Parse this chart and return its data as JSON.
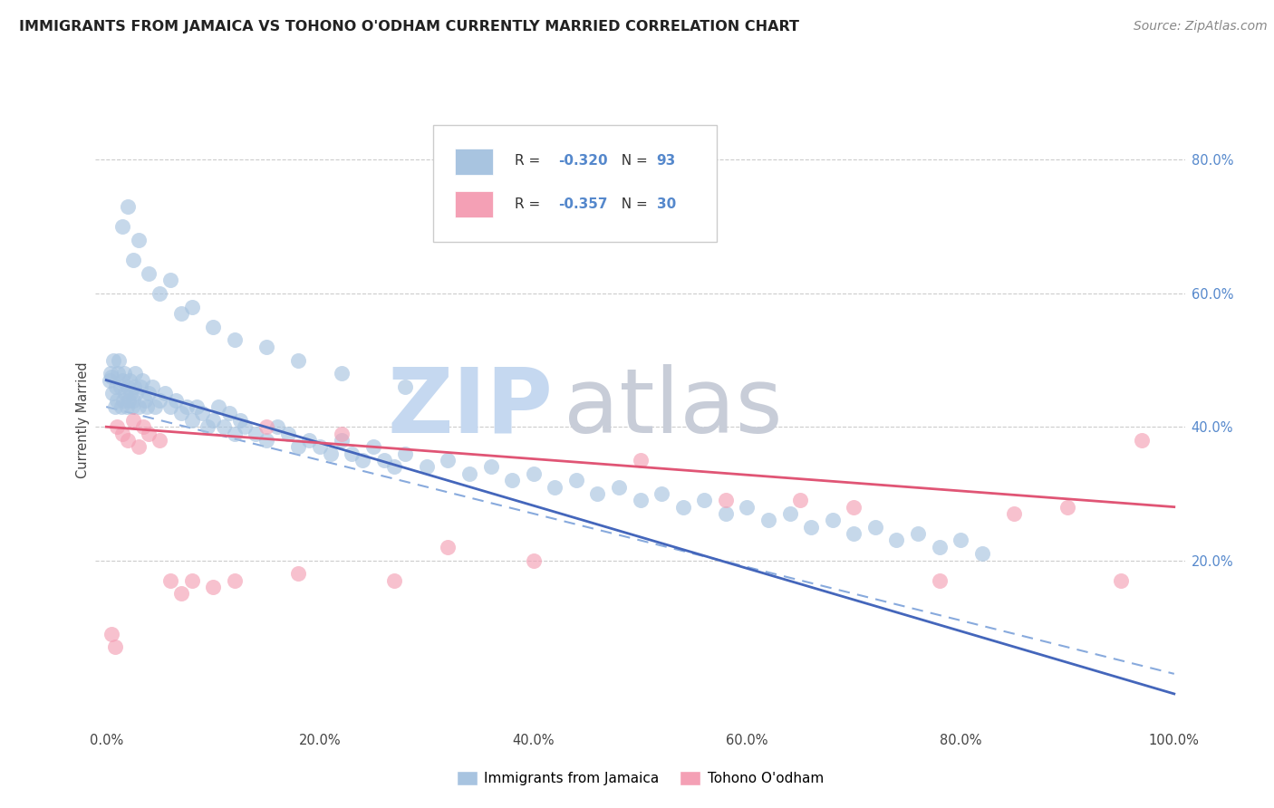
{
  "title": "IMMIGRANTS FROM JAMAICA VS TOHONO O'ODHAM CURRENTLY MARRIED CORRELATION CHART",
  "source": "Source: ZipAtlas.com",
  "ylabel": "Currently Married",
  "legend_label1": "Immigrants from Jamaica",
  "legend_label2": "Tohono O'odham",
  "color_blue": "#a8c4e0",
  "color_pink": "#f4a0b5",
  "color_blue_line": "#4466bb",
  "color_pink_line": "#e05575",
  "color_dashed": "#88aadd",
  "watermark_zip_color": "#c5d8f0",
  "watermark_atlas_color": "#c8cdd8",
  "legend_r1": "R = -0.320",
  "legend_n1": "N = 93",
  "legend_r2": "R = -0.357",
  "legend_n2": "N = 30",
  "right_tick_color": "#5588cc",
  "ylim_min": -5,
  "ylim_max": 87,
  "xlim_min": -1,
  "xlim_max": 101,
  "right_yticks": [
    20,
    40,
    60,
    80
  ],
  "xticks": [
    0,
    20,
    40,
    60,
    80,
    100
  ],
  "grid_color": "#cccccc",
  "grid_linestyle": "--",
  "jamaica_x": [
    0.3,
    0.4,
    0.5,
    0.6,
    0.7,
    0.8,
    0.9,
    1.0,
    1.1,
    1.2,
    1.3,
    1.4,
    1.5,
    1.6,
    1.7,
    1.8,
    1.9,
    2.0,
    2.1,
    2.2,
    2.3,
    2.4,
    2.5,
    2.6,
    2.7,
    2.8,
    3.0,
    3.2,
    3.4,
    3.6,
    3.8,
    4.0,
    4.3,
    4.6,
    5.0,
    5.5,
    6.0,
    6.5,
    7.0,
    7.5,
    8.0,
    8.5,
    9.0,
    9.5,
    10.0,
    10.5,
    11.0,
    11.5,
    12.0,
    12.5,
    13.0,
    14.0,
    15.0,
    16.0,
    17.0,
    18.0,
    19.0,
    20.0,
    21.0,
    22.0,
    23.0,
    24.0,
    25.0,
    26.0,
    27.0,
    28.0,
    30.0,
    32.0,
    34.0,
    36.0,
    38.0,
    40.0,
    42.0,
    44.0,
    46.0,
    48.0,
    50.0,
    52.0,
    54.0,
    56.0,
    58.0,
    60.0,
    62.0,
    64.0,
    66.0,
    68.0,
    70.0,
    72.0,
    74.0,
    76.0,
    78.0,
    80.0,
    82.0
  ],
  "jamaica_y": [
    47.0,
    48.0,
    47.5,
    45.0,
    50.0,
    43.0,
    46.0,
    44.0,
    48.0,
    50.0,
    46.0,
    43.0,
    47.0,
    44.0,
    48.0,
    45.0,
    43.0,
    46.0,
    44.0,
    47.0,
    45.0,
    43.0,
    44.0,
    46.0,
    48.0,
    45.0,
    43.0,
    46.0,
    47.0,
    44.0,
    43.0,
    45.0,
    46.0,
    43.0,
    44.0,
    45.0,
    43.0,
    44.0,
    42.0,
    43.0,
    41.0,
    43.0,
    42.0,
    40.0,
    41.0,
    43.0,
    40.0,
    42.0,
    39.0,
    41.0,
    40.0,
    39.0,
    38.0,
    40.0,
    39.0,
    37.0,
    38.0,
    37.0,
    36.0,
    38.0,
    36.0,
    35.0,
    37.0,
    35.0,
    34.0,
    36.0,
    34.0,
    35.0,
    33.0,
    34.0,
    32.0,
    33.0,
    31.0,
    32.0,
    30.0,
    31.0,
    29.0,
    30.0,
    28.0,
    29.0,
    27.0,
    28.0,
    26.0,
    27.0,
    25.0,
    26.0,
    24.0,
    25.0,
    23.0,
    24.0,
    22.0,
    23.0,
    21.0
  ],
  "jamaica_outliers_x": [
    1.5,
    2.0,
    2.5,
    3.0,
    4.0,
    5.0,
    6.0,
    7.0,
    8.0,
    10.0,
    12.0,
    15.0,
    18.0,
    22.0,
    28.0
  ],
  "jamaica_outliers_y": [
    70.0,
    73.0,
    65.0,
    68.0,
    63.0,
    60.0,
    62.0,
    57.0,
    58.0,
    55.0,
    53.0,
    52.0,
    50.0,
    48.0,
    46.0
  ],
  "tohono_x": [
    0.5,
    0.8,
    1.0,
    1.5,
    2.0,
    2.5,
    3.0,
    3.5,
    4.0,
    5.0,
    6.0,
    7.0,
    8.0,
    10.0,
    12.0,
    15.0,
    18.0,
    22.0,
    27.0,
    32.0,
    40.0,
    50.0,
    58.0,
    65.0,
    70.0,
    78.0,
    85.0,
    90.0,
    95.0,
    97.0
  ],
  "tohono_y": [
    9.0,
    7.0,
    40.0,
    39.0,
    38.0,
    41.0,
    37.0,
    40.0,
    39.0,
    38.0,
    17.0,
    15.0,
    17.0,
    16.0,
    17.0,
    40.0,
    18.0,
    39.0,
    17.0,
    22.0,
    20.0,
    35.0,
    29.0,
    29.0,
    28.0,
    17.0,
    27.0,
    28.0,
    17.0,
    38.0
  ]
}
